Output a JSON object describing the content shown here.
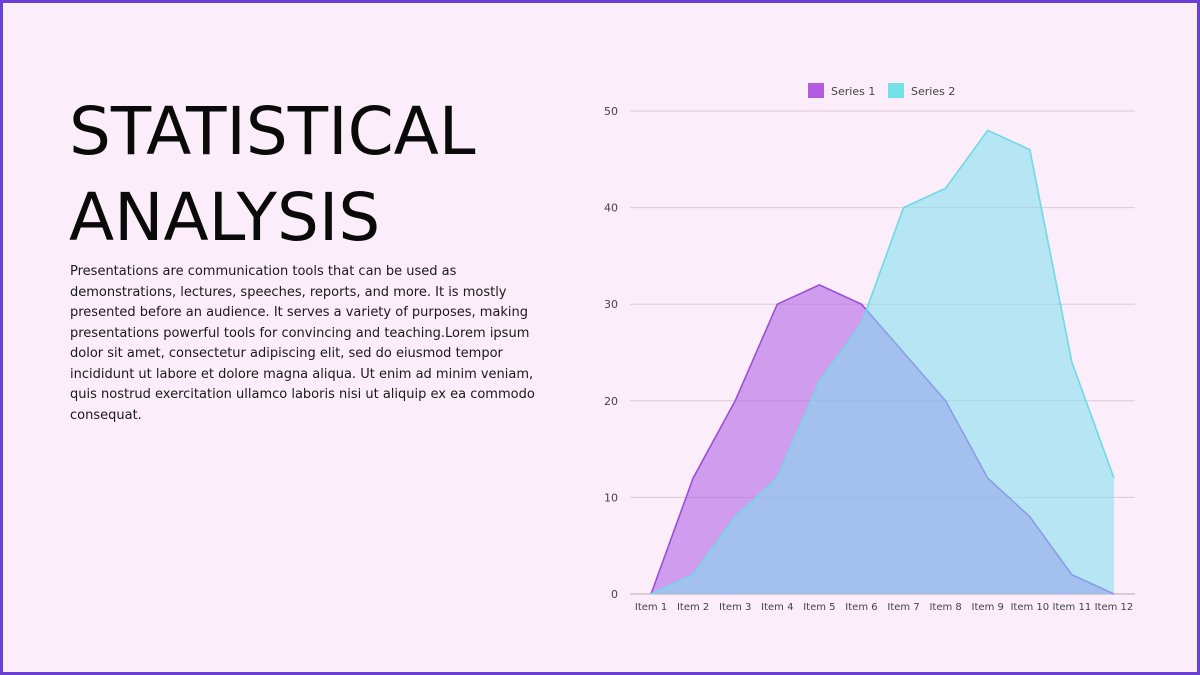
{
  "slide": {
    "title": "STATISTICAL ANALYSIS",
    "body": "Presentations are communication tools that can be used as demonstrations, lectures, speeches, reports, and more. It is mostly presented before an audience. It serves a variety of purposes, making presentations powerful tools for convincing and teaching.Lorem ipsum dolor sit amet, consectetur adipiscing elit, sed do eiusmod tempor incididunt ut labore et dolore magna aliqua. Ut enim ad minim veniam, quis nostrud exercitation ullamco laboris nisi ut aliquip ex ea commodo consequat."
  },
  "colors": {
    "background": "#fbedf9",
    "border": "#6a3fd6",
    "series1_fill": "#b56ae6",
    "series1_stroke": "#9b4fd9",
    "series2_fill": "#7edfef",
    "series2_stroke": "#6fd9e6",
    "grid": "#dccbd8"
  },
  "chart_data": {
    "type": "area",
    "categories": [
      "Item 1",
      "Item 2",
      "Item 3",
      "Item 4",
      "Item 5",
      "Item 6",
      "Item 7",
      "Item 8",
      "Item 9",
      "Item 10",
      "Item 11",
      "Item 12"
    ],
    "series": [
      {
        "name": "Series 1",
        "values": [
          0,
          12,
          20,
          30,
          32,
          30,
          25,
          20,
          12,
          8,
          2,
          0
        ]
      },
      {
        "name": "Series 2",
        "values": [
          0,
          2,
          8,
          12,
          22,
          28,
          40,
          42,
          48,
          46,
          24,
          12
        ]
      }
    ],
    "y_ticks": [
      0,
      10,
      20,
      30,
      40,
      50
    ],
    "ylim": [
      0,
      50
    ],
    "grid": true,
    "legend": "top-center",
    "title": "",
    "xlabel": "",
    "ylabel": ""
  }
}
